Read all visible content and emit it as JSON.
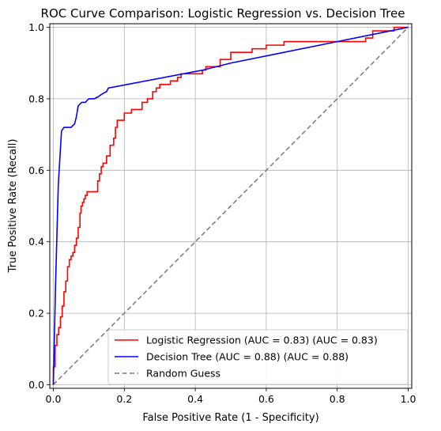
{
  "chart_data": {
    "type": "line",
    "title": "ROC Curve Comparison: Logistic Regression vs. Decision Tree",
    "xlabel": "False Positive Rate (1 - Specificity)",
    "ylabel": "True Positive Rate (Recall)",
    "xlim": [
      -0.01,
      1.01
    ],
    "ylim": [
      -0.01,
      1.01
    ],
    "grid": true,
    "legend_position": "lower-right",
    "xticks": [
      0.0,
      0.2,
      0.4,
      0.6,
      0.8,
      1.0
    ],
    "xtick_labels": [
      "0.0",
      "0.2",
      "0.4",
      "0.6",
      "0.8",
      "1.0"
    ],
    "yticks": [
      0.0,
      0.2,
      0.4,
      0.6,
      0.8,
      1.0
    ],
    "ytick_labels": [
      "0.0",
      "0.2",
      "0.4",
      "0.6",
      "0.8",
      "1.0"
    ],
    "series": [
      {
        "name": "Logistic Regression (AUC = 0.83) (AUC = 0.83)",
        "color": "#ff0000",
        "style": "solid",
        "x": [
          0.0,
          0.0,
          0.005,
          0.005,
          0.01,
          0.01,
          0.015,
          0.015,
          0.02,
          0.02,
          0.025,
          0.025,
          0.03,
          0.03,
          0.035,
          0.035,
          0.04,
          0.04,
          0.045,
          0.045,
          0.05,
          0.05,
          0.055,
          0.055,
          0.06,
          0.06,
          0.065,
          0.065,
          0.07,
          0.07,
          0.075,
          0.075,
          0.078,
          0.078,
          0.082,
          0.082,
          0.086,
          0.086,
          0.09,
          0.09,
          0.095,
          0.095,
          0.1,
          0.1,
          0.125,
          0.125,
          0.13,
          0.13,
          0.135,
          0.135,
          0.14,
          0.14,
          0.15,
          0.15,
          0.16,
          0.16,
          0.17,
          0.17,
          0.175,
          0.175,
          0.18,
          0.18,
          0.19,
          0.19,
          0.2,
          0.2,
          0.22,
          0.22,
          0.23,
          0.23,
          0.25,
          0.25,
          0.265,
          0.265,
          0.28,
          0.28,
          0.29,
          0.29,
          0.3,
          0.3,
          0.31,
          0.31,
          0.33,
          0.33,
          0.35,
          0.35,
          0.36,
          0.36,
          0.42,
          0.42,
          0.43,
          0.43,
          0.47,
          0.47,
          0.5,
          0.5,
          0.56,
          0.56,
          0.6,
          0.6,
          0.65,
          0.65,
          0.8,
          0.8,
          0.88,
          0.88,
          0.9,
          0.9,
          0.96,
          0.96,
          1.0
        ],
        "y": [
          0.0,
          0.05,
          0.05,
          0.11,
          0.11,
          0.14,
          0.14,
          0.16,
          0.16,
          0.19,
          0.19,
          0.22,
          0.22,
          0.26,
          0.26,
          0.29,
          0.29,
          0.33,
          0.33,
          0.35,
          0.35,
          0.36,
          0.36,
          0.37,
          0.37,
          0.39,
          0.39,
          0.41,
          0.41,
          0.44,
          0.44,
          0.48,
          0.48,
          0.5,
          0.5,
          0.51,
          0.51,
          0.52,
          0.52,
          0.53,
          0.53,
          0.54,
          0.54,
          0.54,
          0.54,
          0.57,
          0.57,
          0.59,
          0.59,
          0.61,
          0.61,
          0.62,
          0.62,
          0.64,
          0.64,
          0.67,
          0.67,
          0.69,
          0.69,
          0.72,
          0.72,
          0.74,
          0.74,
          0.74,
          0.74,
          0.76,
          0.76,
          0.77,
          0.77,
          0.77,
          0.77,
          0.79,
          0.79,
          0.8,
          0.8,
          0.82,
          0.82,
          0.83,
          0.83,
          0.84,
          0.84,
          0.84,
          0.84,
          0.85,
          0.85,
          0.86,
          0.86,
          0.87,
          0.87,
          0.88,
          0.88,
          0.89,
          0.89,
          0.91,
          0.91,
          0.93,
          0.93,
          0.94,
          0.94,
          0.95,
          0.95,
          0.96,
          0.96,
          0.96,
          0.96,
          0.97,
          0.97,
          0.99,
          0.99,
          1.0,
          1.0
        ]
      },
      {
        "name": "Decision Tree (AUC = 0.88) (AUC = 0.88)",
        "color": "#0000ff",
        "style": "solid",
        "x": [
          0.0,
          0.006,
          0.014,
          0.023,
          0.03,
          0.035,
          0.05,
          0.06,
          0.065,
          0.07,
          0.08,
          0.09,
          0.1,
          0.115,
          0.125,
          0.14,
          0.15,
          0.155,
          0.42,
          0.5,
          0.65,
          0.8,
          0.9,
          1.0
        ],
        "y": [
          0.0,
          0.27,
          0.56,
          0.71,
          0.72,
          0.72,
          0.72,
          0.73,
          0.75,
          0.78,
          0.79,
          0.79,
          0.8,
          0.8,
          0.805,
          0.815,
          0.82,
          0.83,
          0.88,
          0.9,
          0.93,
          0.96,
          0.98,
          1.0
        ]
      },
      {
        "name": "Random Guess",
        "color": "#808080",
        "style": "dashed",
        "x": [
          0.0,
          1.0
        ],
        "y": [
          0.0,
          1.0
        ]
      }
    ]
  }
}
